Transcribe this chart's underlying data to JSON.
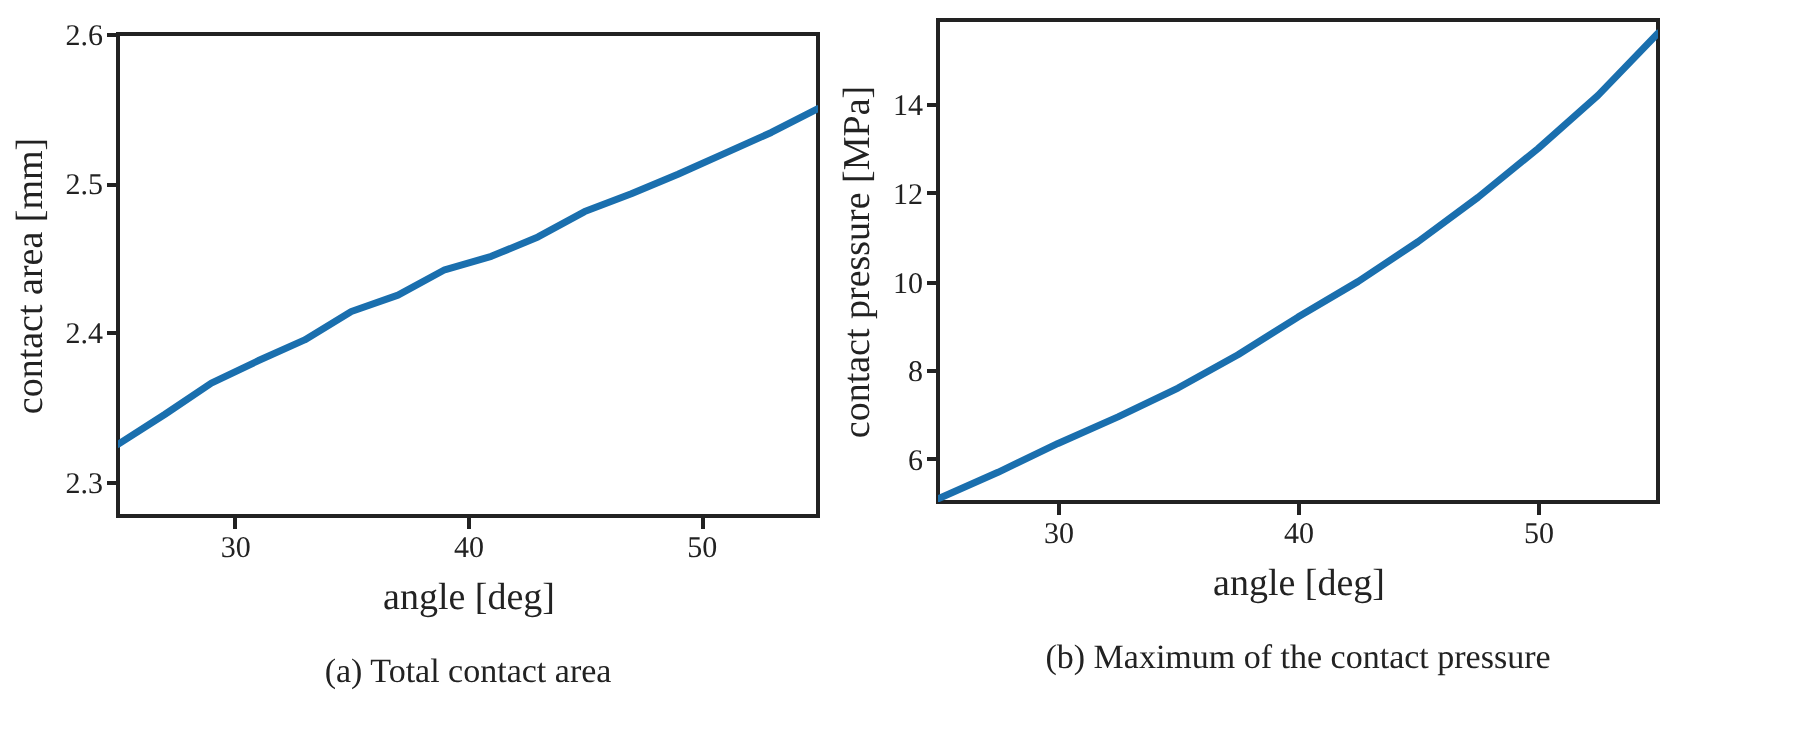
{
  "chart_data": [
    {
      "type": "line",
      "title": "(a)  Total contact area",
      "xlabel": "angle [deg]",
      "ylabel": "contact area [mm]",
      "color": "#1a6fae",
      "grid": false,
      "x": [
        25,
        27,
        29,
        31,
        33,
        35,
        37,
        39,
        41,
        43,
        45,
        47,
        49,
        51,
        53,
        55
      ],
      "values": [
        2.325,
        2.345,
        2.366,
        2.381,
        2.395,
        2.414,
        2.425,
        2.442,
        2.451,
        2.464,
        2.481,
        2.493,
        2.506,
        2.52,
        2.534,
        2.55
      ],
      "xlim": [
        25,
        55
      ],
      "ylim": [
        2.277,
        2.6
      ],
      "xticks": [
        30,
        40,
        50
      ],
      "yticks": [
        2.3,
        2.4,
        2.5,
        2.6
      ]
    },
    {
      "type": "line",
      "title": "(b)  Maximum of the contact pressure",
      "xlabel": "angle [deg]",
      "ylabel": "contact pressure [MPa]",
      "color": "#1a6fae",
      "grid": false,
      "x": [
        25,
        27.5,
        30,
        32.5,
        35,
        37.5,
        40,
        42.5,
        45,
        47.5,
        50,
        52.5,
        55
      ],
      "values": [
        5.1,
        5.7,
        6.35,
        6.95,
        7.6,
        8.35,
        9.2,
        10.0,
        10.9,
        11.9,
        13.0,
        14.2,
        15.6
      ],
      "xlim": [
        25,
        55
      ],
      "ylim": [
        5.03,
        15.9
      ],
      "xticks": [
        30,
        40,
        50
      ],
      "yticks": [
        6,
        8,
        10,
        12,
        14
      ]
    }
  ]
}
